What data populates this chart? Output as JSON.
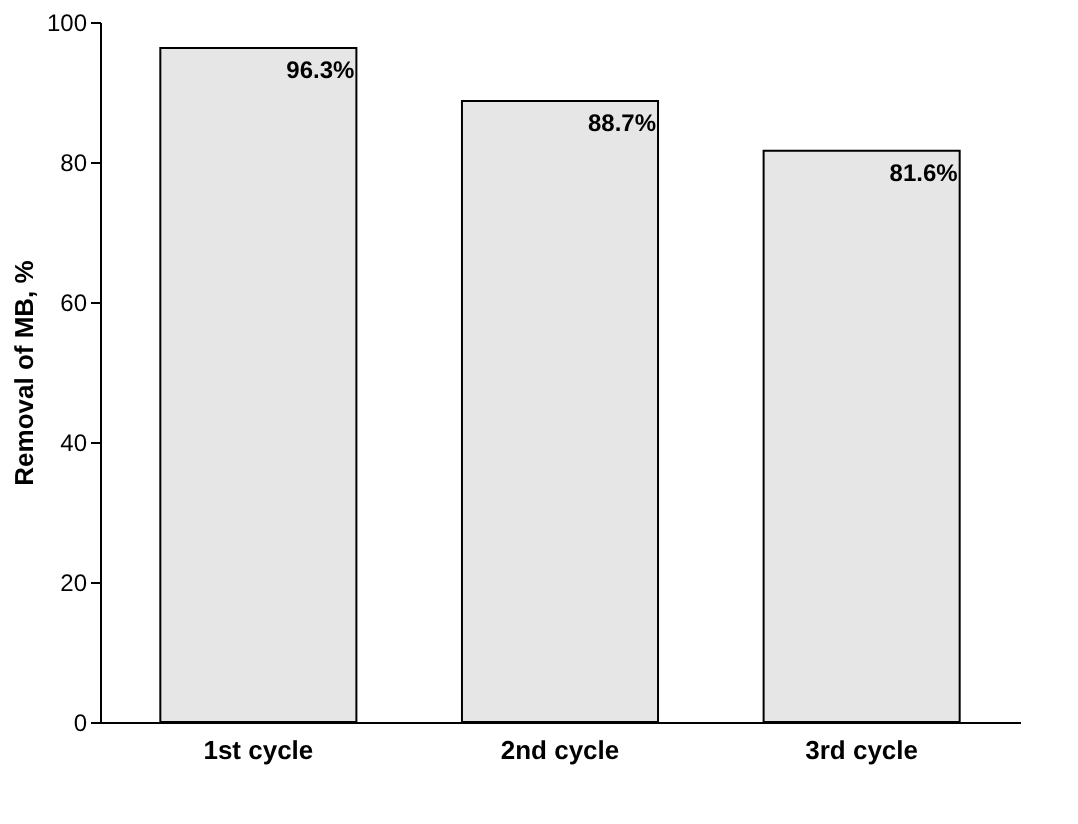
{
  "chart_data": {
    "type": "bar",
    "ylabel": "Removal of MB, %",
    "categories": [
      "1st cycle",
      "2nd cycle",
      "3rd cycle"
    ],
    "values": [
      96.3,
      88.7,
      81.6
    ],
    "value_labels": [
      "96.3%",
      "88.7%",
      "81.6%"
    ],
    "color": "#e6e6e6",
    "ylim": [
      0,
      100
    ],
    "yticks": [
      0,
      20,
      40,
      60,
      80,
      100
    ]
  }
}
